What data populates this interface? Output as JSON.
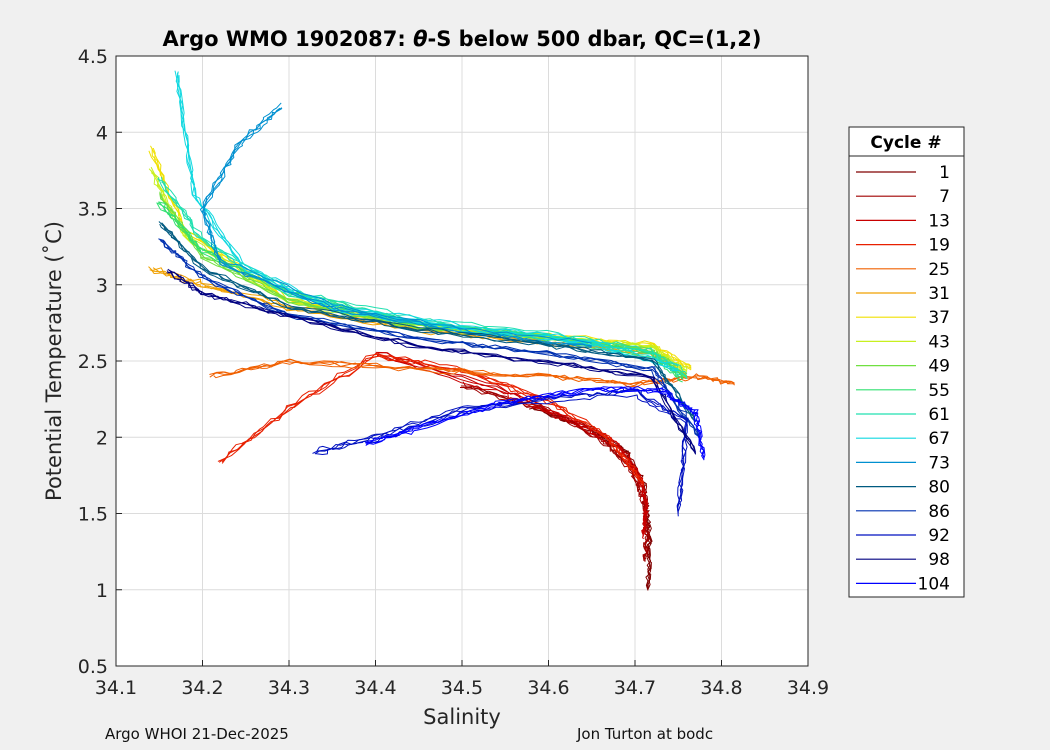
{
  "chart_data": {
    "type": "line",
    "title_prefix": "Argo WMO 1902087: ",
    "title_theta": "θ",
    "title_suffix": "-S below 500 dbar,  QC=(1,2)",
    "xlabel": "Salinity",
    "ylabel": "Potential Temperature (˚C)",
    "xlim": [
      34.1,
      34.9
    ],
    "ylim": [
      0.5,
      4.5
    ],
    "x_ticks": [
      "34.1",
      "34.2",
      "34.3",
      "34.4",
      "34.5",
      "34.6",
      "34.7",
      "34.8",
      "34.9"
    ],
    "y_ticks": [
      "0.5",
      "1",
      "1.5",
      "2",
      "2.5",
      "3",
      "3.5",
      "4",
      "4.5"
    ],
    "grid": true,
    "legend_title": "Cycle #",
    "legend_placement": "right",
    "legend": [
      {
        "label": "1",
        "color": "#800000"
      },
      {
        "label": "7",
        "color": "#a00000"
      },
      {
        "label": "13",
        "color": "#c80000"
      },
      {
        "label": "19",
        "color": "#e82000"
      },
      {
        "label": "25",
        "color": "#f06000"
      },
      {
        "label": "31",
        "color": "#f0a000"
      },
      {
        "label": "37",
        "color": "#f0e000"
      },
      {
        "label": "43",
        "color": "#c8f020"
      },
      {
        "label": "49",
        "color": "#70e040"
      },
      {
        "label": "55",
        "color": "#30e070"
      },
      {
        "label": "61",
        "color": "#20e0b0"
      },
      {
        "label": "67",
        "color": "#10d8e0"
      },
      {
        "label": "73",
        "color": "#0090d0"
      },
      {
        "label": "80",
        "color": "#005a80"
      },
      {
        "label": "86",
        "color": "#0030b0"
      },
      {
        "label": "92",
        "color": "#0010c0"
      },
      {
        "label": "98",
        "color": "#000080"
      },
      {
        "label": "104",
        "color": "#0000ff"
      }
    ],
    "series": [
      {
        "name": "1",
        "color": "#800000",
        "x": [
          34.58,
          34.65,
          34.69,
          34.71,
          34.715,
          34.717,
          34.715
        ],
        "y": [
          2.2,
          2.05,
          1.9,
          1.7,
          1.5,
          1.3,
          1.0
        ]
      },
      {
        "name": "7",
        "color": "#a00000",
        "x": [
          34.5,
          34.6,
          34.66,
          34.695,
          34.71,
          34.714,
          34.712
        ],
        "y": [
          2.35,
          2.18,
          2.0,
          1.8,
          1.6,
          1.4,
          1.2
        ]
      },
      {
        "name": "13",
        "color": "#c80000",
        "x": [
          34.4,
          34.55,
          34.63,
          34.68,
          34.705,
          34.713,
          34.71
        ],
        "y": [
          2.55,
          2.3,
          2.1,
          1.95,
          1.75,
          1.55,
          1.35
        ]
      },
      {
        "name": "19",
        "color": "#e82000",
        "x": [
          34.22,
          34.3,
          34.4,
          34.5,
          34.6,
          34.67,
          34.71
        ],
        "y": [
          1.85,
          2.2,
          2.55,
          2.45,
          2.25,
          2.0,
          1.7
        ]
      },
      {
        "name": "25",
        "color": "#f06000",
        "x": [
          34.21,
          34.3,
          34.45,
          34.6,
          34.7,
          34.77,
          34.815
        ],
        "y": [
          2.4,
          2.5,
          2.45,
          2.4,
          2.35,
          2.4,
          2.35
        ]
      },
      {
        "name": "31",
        "color": "#f0a000",
        "x": [
          34.14,
          34.2,
          34.3,
          34.45,
          34.6,
          34.72,
          34.76
        ],
        "y": [
          3.1,
          3.0,
          2.85,
          2.7,
          2.62,
          2.55,
          2.4
        ]
      },
      {
        "name": "37",
        "color": "#f0e000",
        "x": [
          34.14,
          34.18,
          34.3,
          34.45,
          34.6,
          34.72,
          34.765
        ],
        "y": [
          3.9,
          3.35,
          2.9,
          2.72,
          2.66,
          2.6,
          2.45
        ]
      },
      {
        "name": "43",
        "color": "#c8f020",
        "x": [
          34.14,
          34.18,
          34.3,
          34.45,
          34.6,
          34.72,
          34.76
        ],
        "y": [
          3.75,
          3.3,
          2.88,
          2.72,
          2.65,
          2.58,
          2.42
        ]
      },
      {
        "name": "49",
        "color": "#70e040",
        "x": [
          34.15,
          34.2,
          34.3,
          34.45,
          34.6,
          34.72,
          34.76
        ],
        "y": [
          3.6,
          3.2,
          2.9,
          2.73,
          2.66,
          2.58,
          2.4
        ]
      },
      {
        "name": "55",
        "color": "#30e070",
        "x": [
          34.15,
          34.2,
          34.3,
          34.45,
          34.6,
          34.72,
          34.755
        ],
        "y": [
          3.55,
          3.22,
          2.95,
          2.75,
          2.66,
          2.55,
          2.38
        ]
      },
      {
        "name": "61",
        "color": "#20e0b0",
        "x": [
          34.15,
          34.2,
          34.3,
          34.45,
          34.6,
          34.72,
          34.76
        ],
        "y": [
          3.7,
          3.3,
          2.95,
          2.76,
          2.67,
          2.56,
          2.4
        ]
      },
      {
        "name": "67",
        "color": "#10d8e0",
        "x": [
          34.17,
          34.19,
          34.25,
          34.35,
          34.5,
          34.65,
          34.75
        ],
        "y": [
          4.4,
          3.6,
          3.1,
          2.85,
          2.72,
          2.62,
          2.45
        ]
      },
      {
        "name": "73",
        "color": "#0090d0",
        "x": [
          34.29,
          34.24,
          34.2,
          34.22,
          34.35,
          34.5,
          34.65
        ],
        "y": [
          4.17,
          3.9,
          3.5,
          3.15,
          2.85,
          2.7,
          2.6
        ]
      },
      {
        "name": "80",
        "color": "#005a80",
        "x": [
          34.15,
          34.2,
          34.3,
          34.45,
          34.6,
          34.72,
          34.77
        ],
        "y": [
          3.4,
          3.1,
          2.85,
          2.7,
          2.6,
          2.5,
          2.1
        ]
      },
      {
        "name": "86",
        "color": "#0030b0",
        "x": [
          34.15,
          34.2,
          34.3,
          34.45,
          34.6,
          34.72,
          34.775
        ],
        "y": [
          3.3,
          3.05,
          2.8,
          2.65,
          2.55,
          2.45,
          2.0
        ]
      },
      {
        "name": "92",
        "color": "#0010c0",
        "x": [
          34.33,
          34.4,
          34.5,
          34.6,
          34.7,
          34.76,
          34.75
        ],
        "y": [
          1.9,
          2.0,
          2.18,
          2.25,
          2.3,
          2.1,
          1.5
        ]
      },
      {
        "name": "98",
        "color": "#000080",
        "x": [
          34.16,
          34.2,
          34.3,
          34.45,
          34.6,
          34.72,
          34.77
        ],
        "y": [
          3.1,
          2.95,
          2.8,
          2.6,
          2.5,
          2.4,
          1.9
        ]
      },
      {
        "name": "104",
        "color": "#0000ff",
        "x": [
          34.39,
          34.45,
          34.55,
          34.65,
          34.73,
          34.77,
          34.78
        ],
        "y": [
          1.95,
          2.05,
          2.22,
          2.3,
          2.3,
          2.15,
          1.85
        ]
      }
    ]
  },
  "footer": {
    "left": "Argo WHOI 21-Dec-2025",
    "right": "Jon Turton at bodc"
  }
}
